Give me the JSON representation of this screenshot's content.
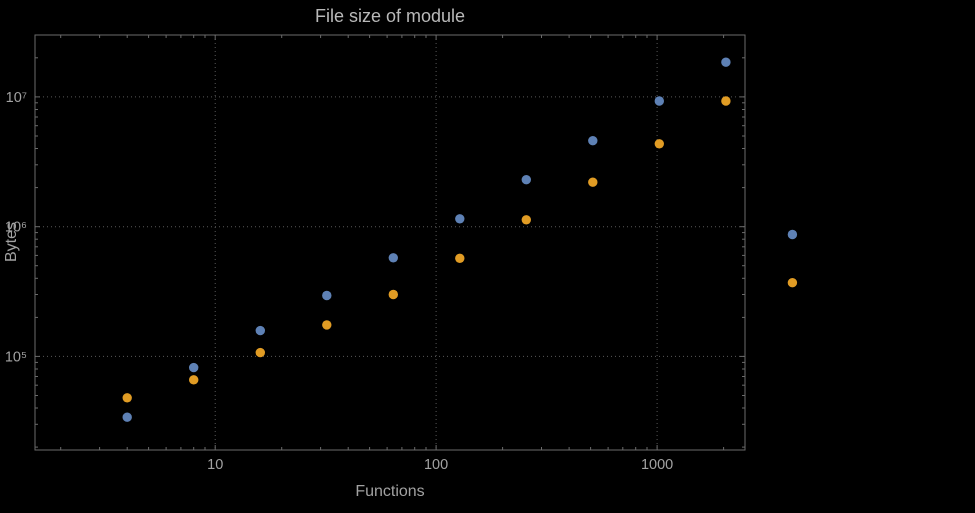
{
  "chart_data": {
    "type": "scatter",
    "title": "File size of module",
    "xlabel": "Functions",
    "ylabel": "Bytes",
    "x_scale": "log",
    "y_scale": "log",
    "grid": true,
    "legend": "none",
    "x": [
      4,
      8,
      16,
      32,
      64,
      128,
      256,
      512,
      1024,
      2048,
      4096
    ],
    "series": [
      {
        "name": "blue",
        "color": "#5e81b5",
        "values": [
          34000,
          82000,
          158000,
          295000,
          575000,
          1150000,
          2300000,
          4600000,
          9300000,
          18500000,
          870000
        ]
      },
      {
        "name": "orange",
        "color": "#e19c24",
        "values": [
          48000,
          66000,
          107000,
          175000,
          300000,
          570000,
          1130000,
          2200000,
          4350000,
          9300000,
          370000
        ]
      }
    ],
    "x_ticks": [
      {
        "v": 10,
        "label": "10"
      },
      {
        "v": 100,
        "label": "100"
      },
      {
        "v": 1000,
        "label": "1000"
      }
    ],
    "y_ticks": [
      {
        "v": 100000,
        "label": "10⁵"
      },
      {
        "v": 1000000,
        "label": "10⁶"
      },
      {
        "v": 10000000,
        "label": "10⁷"
      }
    ],
    "x_range": [
      1.53,
      2500
    ],
    "y_range": [
      19000,
      30000000
    ],
    "title_color": "#b9b9b9",
    "text_color": "#a2a2a2",
    "frame_color": "#6b6b6b",
    "grid_color": "#585858",
    "background": "#000000"
  }
}
